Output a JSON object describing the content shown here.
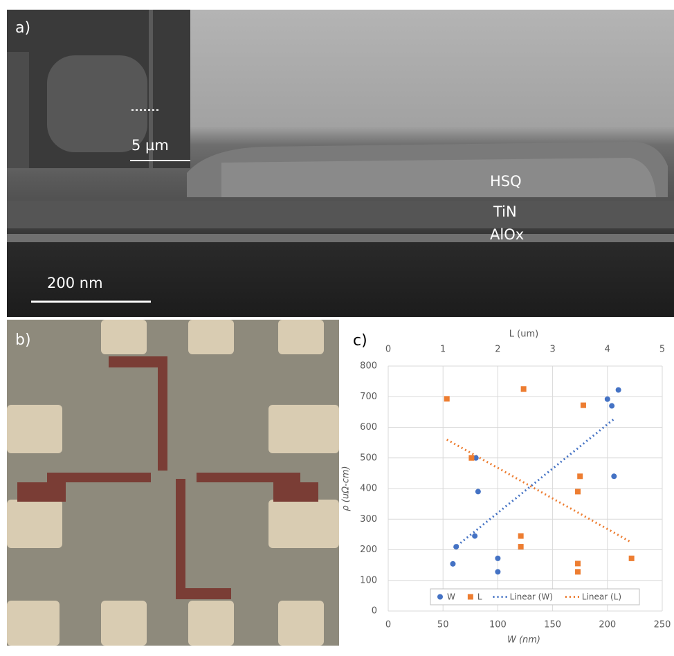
{
  "panel_a": {
    "label": "a)",
    "inset_scale": "5 µm",
    "layers": [
      "HSQ",
      "TiN",
      "AlOx"
    ],
    "scale": "200 nm"
  },
  "panel_b": {
    "label": "b)"
  },
  "chart_data": {
    "type": "scatter",
    "label": "c)",
    "x_title": "W (nm)",
    "x2_title": "L (um)",
    "y_title": "ρ (uΩ-cm)",
    "xlim": [
      0,
      250
    ],
    "xticks": [
      0,
      50,
      100,
      150,
      200,
      250
    ],
    "x2lim": [
      0,
      5
    ],
    "x2ticks": [
      0,
      1,
      2,
      3,
      4,
      5
    ],
    "ylim": [
      0,
      800
    ],
    "yticks": [
      0,
      100,
      200,
      300,
      400,
      500,
      600,
      700,
      800
    ],
    "grid": true,
    "legend": "bottom",
    "series": [
      {
        "name": "W",
        "color": "#4472c4",
        "marker": "circle",
        "axis": "x",
        "x": [
          59,
          62,
          80,
          82,
          79,
          100,
          100,
          200,
          204,
          210,
          206
        ],
        "values": [
          154,
          210,
          500,
          390,
          245,
          172,
          128,
          692,
          670,
          722,
          440
        ]
      },
      {
        "name": "L",
        "color": "#ed7d31",
        "marker": "square",
        "axis": "x2",
        "x": [
          1.07,
          1.52,
          2.47,
          2.42,
          2.42,
          3.56,
          3.5,
          3.46,
          3.46,
          3.46,
          4.44
        ],
        "values": [
          693,
          500,
          725,
          245,
          210,
          672,
          440,
          390,
          155,
          128,
          172
        ]
      }
    ],
    "trendlines": [
      {
        "name": "Linear (W)",
        "color": "#4472c4",
        "axis": "x",
        "x": [
          60,
          207
        ],
        "values": [
          205,
          630
        ]
      },
      {
        "name": "Linear (L)",
        "color": "#ed7d31",
        "axis": "x2",
        "x": [
          1.07,
          4.43
        ],
        "values": [
          560,
          225
        ]
      }
    ]
  }
}
